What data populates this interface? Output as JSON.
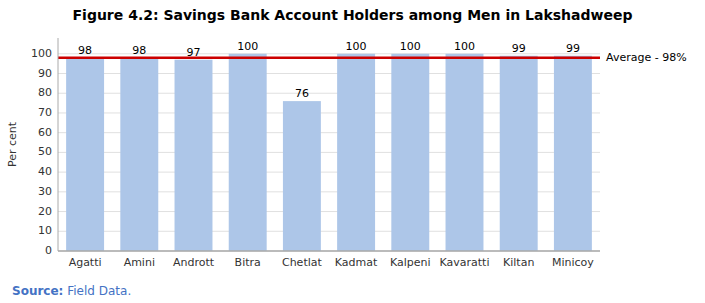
{
  "chart_data": {
    "type": "bar",
    "title": "Figure 4.2: Savings Bank Account Holders among Men in Lakshadweep",
    "categories": [
      "Agatti",
      "Amini",
      "Andrott",
      "Bitra",
      "Chetlat",
      "Kadmat",
      "Kalpeni",
      "Kavaratti",
      "Kiltan",
      "Minicoy"
    ],
    "values": [
      98,
      98,
      97,
      100,
      76,
      100,
      100,
      100,
      99,
      99
    ],
    "color": "#adc6e8",
    "y_label": "Per cent",
    "ylim": [
      0,
      108
    ],
    "yticks": [
      0,
      10,
      20,
      30,
      40,
      50,
      60,
      70,
      80,
      90,
      100
    ],
    "grid": true,
    "data_labels": true,
    "annotations": [
      {
        "value": 98,
        "label": "Average - 98%",
        "color": "#cc0000"
      }
    ],
    "source_label": "Source:",
    "source_text": " Field Data."
  }
}
